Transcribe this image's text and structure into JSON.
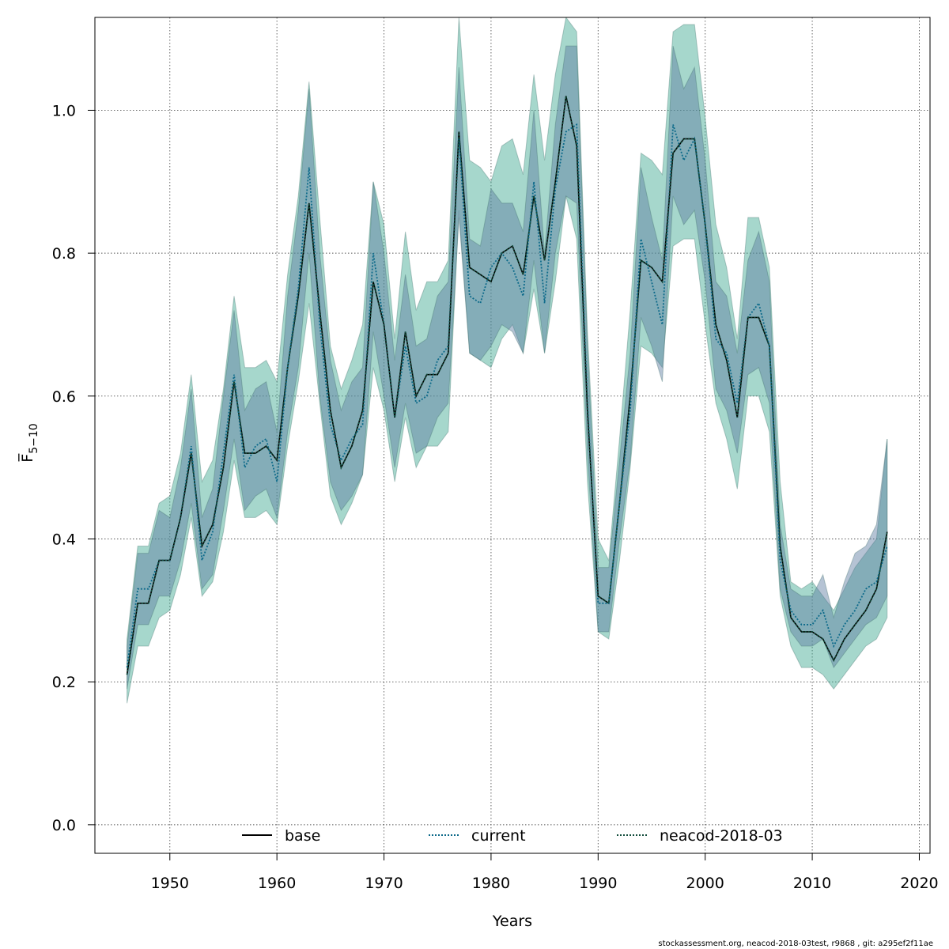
{
  "chart_data": {
    "type": "line",
    "title": "",
    "xlabel": "Years",
    "ylabel": "F̅",
    "ylabel_subscript": "5−10",
    "xlim": [
      1943,
      2021
    ],
    "ylim": [
      -0.04,
      1.13
    ],
    "x_ticks": [
      1950,
      1960,
      1970,
      1980,
      1990,
      2000,
      2010,
      2020
    ],
    "x_tick_labels": [
      "1950",
      "1960",
      "1970",
      "1980",
      "1990",
      "2000",
      "2010",
      "2020"
    ],
    "y_ticks": [
      0.0,
      0.2,
      0.4,
      0.6,
      0.8,
      1.0
    ],
    "y_tick_labels": [
      "0.0",
      "0.2",
      "0.4",
      "0.6",
      "0.8",
      "1.0"
    ],
    "grid": true,
    "legend_position": "bottom",
    "x": [
      1946,
      1947,
      1948,
      1949,
      1950,
      1951,
      1952,
      1953,
      1954,
      1955,
      1956,
      1957,
      1958,
      1959,
      1960,
      1961,
      1962,
      1963,
      1964,
      1965,
      1966,
      1967,
      1968,
      1969,
      1970,
      1971,
      1972,
      1973,
      1974,
      1975,
      1976,
      1977,
      1978,
      1979,
      1980,
      1981,
      1982,
      1983,
      1984,
      1985,
      1986,
      1987,
      1988,
      1989,
      1990,
      1991,
      1992,
      1993,
      1994,
      1995,
      1996,
      1997,
      1998,
      1999,
      2000,
      2001,
      2002,
      2003,
      2004,
      2005,
      2006,
      2007,
      2008,
      2009,
      2010,
      2011,
      2012,
      2013,
      2014,
      2015,
      2016,
      2017
    ],
    "series": [
      {
        "name": "base",
        "color": "#000000",
        "dash": "solid",
        "band_color": "#3aa68f",
        "values": [
          0.21,
          0.31,
          0.31,
          0.37,
          0.37,
          0.43,
          0.52,
          0.39,
          0.42,
          0.5,
          0.62,
          0.52,
          0.52,
          0.53,
          0.51,
          0.64,
          0.74,
          0.87,
          0.72,
          0.58,
          0.5,
          0.53,
          0.58,
          0.76,
          0.7,
          0.57,
          0.69,
          0.6,
          0.63,
          0.63,
          0.66,
          0.97,
          0.78,
          0.77,
          0.76,
          0.8,
          0.81,
          0.77,
          0.88,
          0.79,
          0.9,
          1.02,
          0.95,
          0.58,
          0.32,
          0.31,
          0.45,
          0.6,
          0.79,
          0.78,
          0.76,
          0.94,
          0.96,
          0.96,
          0.84,
          0.7,
          0.65,
          0.57,
          0.71,
          0.71,
          0.67,
          0.39,
          0.29,
          0.27,
          0.27,
          0.26,
          0.23,
          0.26,
          0.28,
          0.3,
          0.33,
          0.41
        ],
        "lower": [
          0.17,
          0.25,
          0.25,
          0.29,
          0.3,
          0.35,
          0.43,
          0.32,
          0.34,
          0.41,
          0.51,
          0.43,
          0.43,
          0.44,
          0.42,
          0.53,
          0.62,
          0.73,
          0.59,
          0.46,
          0.42,
          0.45,
          0.49,
          0.64,
          0.58,
          0.48,
          0.57,
          0.5,
          0.53,
          0.53,
          0.55,
          0.86,
          0.66,
          0.65,
          0.64,
          0.68,
          0.7,
          0.66,
          0.75,
          0.66,
          0.76,
          0.88,
          0.82,
          0.48,
          0.27,
          0.26,
          0.37,
          0.5,
          0.67,
          0.66,
          0.64,
          0.81,
          0.82,
          0.82,
          0.7,
          0.59,
          0.54,
          0.47,
          0.6,
          0.6,
          0.55,
          0.32,
          0.25,
          0.22,
          0.22,
          0.21,
          0.19,
          0.21,
          0.23,
          0.25,
          0.26,
          0.29
        ],
        "upper": [
          0.26,
          0.39,
          0.39,
          0.45,
          0.46,
          0.52,
          0.63,
          0.48,
          0.51,
          0.61,
          0.74,
          0.64,
          0.64,
          0.65,
          0.62,
          0.77,
          0.88,
          1.04,
          0.85,
          0.67,
          0.61,
          0.65,
          0.7,
          0.9,
          0.84,
          0.68,
          0.83,
          0.72,
          0.76,
          0.76,
          0.79,
          1.13,
          0.93,
          0.92,
          0.9,
          0.95,
          0.96,
          0.91,
          1.05,
          0.93,
          1.05,
          1.13,
          1.11,
          0.69,
          0.4,
          0.37,
          0.54,
          0.72,
          0.94,
          0.93,
          0.91,
          1.11,
          1.12,
          1.12,
          0.99,
          0.84,
          0.78,
          0.68,
          0.85,
          0.85,
          0.78,
          0.48,
          0.34,
          0.33,
          0.34,
          0.32,
          0.3,
          0.33,
          0.36,
          0.38,
          0.4,
          0.54
        ]
      },
      {
        "name": "current",
        "color": "#0d6a8a",
        "dash": "dotted",
        "band_color": "#5a7aa0",
        "values": [
          0.22,
          0.33,
          0.33,
          0.37,
          0.37,
          0.43,
          0.53,
          0.37,
          0.41,
          0.52,
          0.63,
          0.5,
          0.53,
          0.54,
          0.48,
          0.64,
          0.75,
          0.92,
          0.7,
          0.56,
          0.51,
          0.54,
          0.56,
          0.8,
          0.7,
          0.57,
          0.67,
          0.59,
          0.6,
          0.65,
          0.67,
          0.96,
          0.74,
          0.73,
          0.78,
          0.8,
          0.78,
          0.74,
          0.9,
          0.73,
          0.89,
          0.97,
          0.98,
          0.59,
          0.31,
          0.31,
          0.45,
          0.58,
          0.82,
          0.76,
          0.7,
          0.98,
          0.93,
          0.96,
          0.84,
          0.68,
          0.66,
          0.59,
          0.71,
          0.73,
          0.67,
          0.37,
          0.3,
          0.28,
          0.28,
          0.3,
          0.25,
          0.28,
          0.3,
          0.33,
          0.34,
          0.39
        ],
        "lower": [
          0.19,
          0.28,
          0.28,
          0.32,
          0.32,
          0.37,
          0.45,
          0.33,
          0.35,
          0.44,
          0.54,
          0.44,
          0.46,
          0.47,
          0.43,
          0.55,
          0.64,
          0.8,
          0.6,
          0.48,
          0.44,
          0.46,
          0.49,
          0.69,
          0.6,
          0.5,
          0.59,
          0.52,
          0.53,
          0.57,
          0.59,
          0.85,
          0.66,
          0.65,
          0.67,
          0.7,
          0.69,
          0.66,
          0.79,
          0.66,
          0.8,
          0.88,
          0.87,
          0.52,
          0.27,
          0.27,
          0.4,
          0.51,
          0.71,
          0.67,
          0.62,
          0.88,
          0.84,
          0.86,
          0.76,
          0.61,
          0.58,
          0.52,
          0.63,
          0.64,
          0.59,
          0.33,
          0.27,
          0.25,
          0.25,
          0.26,
          0.22,
          0.24,
          0.26,
          0.28,
          0.29,
          0.32
        ],
        "upper": [
          0.25,
          0.38,
          0.38,
          0.44,
          0.43,
          0.5,
          0.61,
          0.43,
          0.47,
          0.6,
          0.72,
          0.58,
          0.61,
          0.62,
          0.55,
          0.74,
          0.86,
          1.03,
          0.8,
          0.65,
          0.58,
          0.62,
          0.64,
          0.9,
          0.8,
          0.65,
          0.77,
          0.67,
          0.68,
          0.74,
          0.76,
          1.06,
          0.82,
          0.81,
          0.89,
          0.87,
          0.87,
          0.83,
          1.0,
          0.8,
          0.98,
          1.09,
          1.09,
          0.67,
          0.36,
          0.36,
          0.51,
          0.66,
          0.92,
          0.85,
          0.79,
          1.09,
          1.03,
          1.06,
          0.93,
          0.76,
          0.74,
          0.66,
          0.79,
          0.83,
          0.76,
          0.42,
          0.33,
          0.32,
          0.32,
          0.35,
          0.29,
          0.34,
          0.38,
          0.39,
          0.42,
          0.54
        ]
      },
      {
        "name": "neacod-2018-03",
        "color": "#134d3c",
        "dash": "dotted",
        "band_color": "#3aa68f",
        "values": [
          0.21,
          0.31,
          0.31,
          0.37,
          0.37,
          0.43,
          0.52,
          0.39,
          0.42,
          0.5,
          0.62,
          0.52,
          0.52,
          0.53,
          0.51,
          0.64,
          0.74,
          0.87,
          0.72,
          0.58,
          0.5,
          0.53,
          0.58,
          0.76,
          0.7,
          0.57,
          0.69,
          0.6,
          0.63,
          0.63,
          0.66,
          0.97,
          0.78,
          0.77,
          0.76,
          0.8,
          0.81,
          0.77,
          0.88,
          0.79,
          0.9,
          1.02,
          0.95,
          0.58,
          0.32,
          0.31,
          0.45,
          0.6,
          0.79,
          0.78,
          0.76,
          0.94,
          0.96,
          0.96,
          0.84,
          0.7,
          0.65,
          0.57,
          0.71,
          0.71,
          0.67,
          0.39,
          0.29,
          0.27,
          0.27,
          0.26,
          0.23,
          0.26,
          0.28,
          0.3,
          0.33,
          0.41
        ]
      }
    ]
  },
  "footer": {
    "note": "stockassessment.org, neacod-2018-03test, r9868 , git: a295ef2f11ae"
  }
}
